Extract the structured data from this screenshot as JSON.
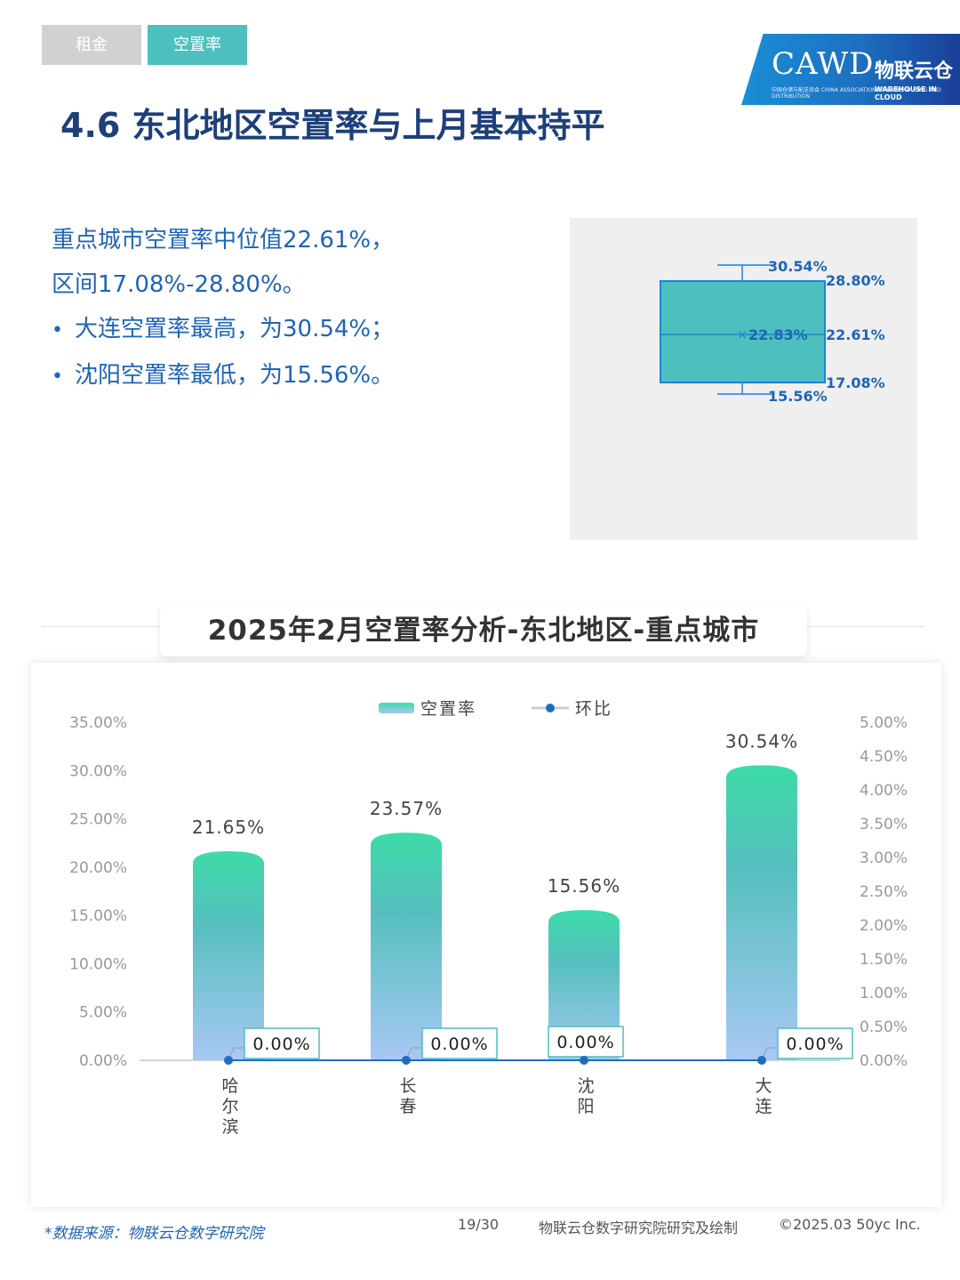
{
  "nav": {
    "tab_rent": "租金",
    "tab_vacancy": "空置率"
  },
  "logo": {
    "main": "CAWD",
    "sub": "中国仓储与配送协会 CHINA ASSOCIATION OF WAREHOUSING AND DISTRIBUTION",
    "cn": "物联云仓",
    "en": "WAREHOUSE IN CLOUD"
  },
  "page_title": "4.6 东北地区空置率与上月基本持平",
  "summary": {
    "line1": "重点城市空置率中位值22.61%，",
    "line2": "区间17.08%-28.80%。",
    "bullet1": "大连空置率最高，为30.54%；",
    "bullet2": "沈阳空置率最低，为15.56%。"
  },
  "boxplot": {
    "max": "30.54%",
    "q3": "28.80%",
    "mean": "22.83%",
    "median": "22.61%",
    "q1": "17.08%",
    "min": "15.56%",
    "color": "#4ebfbf",
    "line_color": "#1e82d6"
  },
  "chart_data": {
    "type": "bar",
    "title": "2025年2月空置率分析-东北地区-重点城市",
    "categories": [
      "哈尔滨",
      "长春",
      "沈阳",
      "大连"
    ],
    "series": [
      {
        "name": "空置率",
        "type": "bar",
        "axis": "left",
        "values": [
          21.65,
          23.57,
          15.56,
          30.54
        ],
        "labels": [
          "21.65%",
          "23.57%",
          "15.56%",
          "30.54%"
        ]
      },
      {
        "name": "环比",
        "type": "line",
        "axis": "right",
        "values": [
          0.0,
          0.0,
          0.0,
          0.0
        ],
        "labels": [
          "0.00%",
          "0.00%",
          "0.00%",
          "0.00%"
        ]
      }
    ],
    "y_left": {
      "min": 0,
      "max": 35,
      "step": 5,
      "ticks": [
        "0.00%",
        "5.00%",
        "10.00%",
        "15.00%",
        "20.00%",
        "25.00%",
        "30.00%",
        "35.00%"
      ]
    },
    "y_right": {
      "min": 0,
      "max": 5,
      "step": 0.5,
      "ticks": [
        "0.00%",
        "0.50%",
        "1.00%",
        "1.50%",
        "2.00%",
        "2.50%",
        "3.00%",
        "3.50%",
        "4.00%",
        "4.50%",
        "5.00%"
      ]
    },
    "legend_position": "top",
    "grid": false,
    "colors": {
      "bar_top": "#3ddba8",
      "bar_mid": "#56bfbe",
      "bar_bottom": "#a8c8f4",
      "line": "#1e6ebf",
      "label_border": "#4ebfbf"
    }
  },
  "footer": {
    "source": "*数据来源：物联云仓数字研究院",
    "page": "19/30",
    "credit": "物联云仓数字研究院研究及绘制",
    "copyright": "©2025.03 50yc Inc."
  }
}
